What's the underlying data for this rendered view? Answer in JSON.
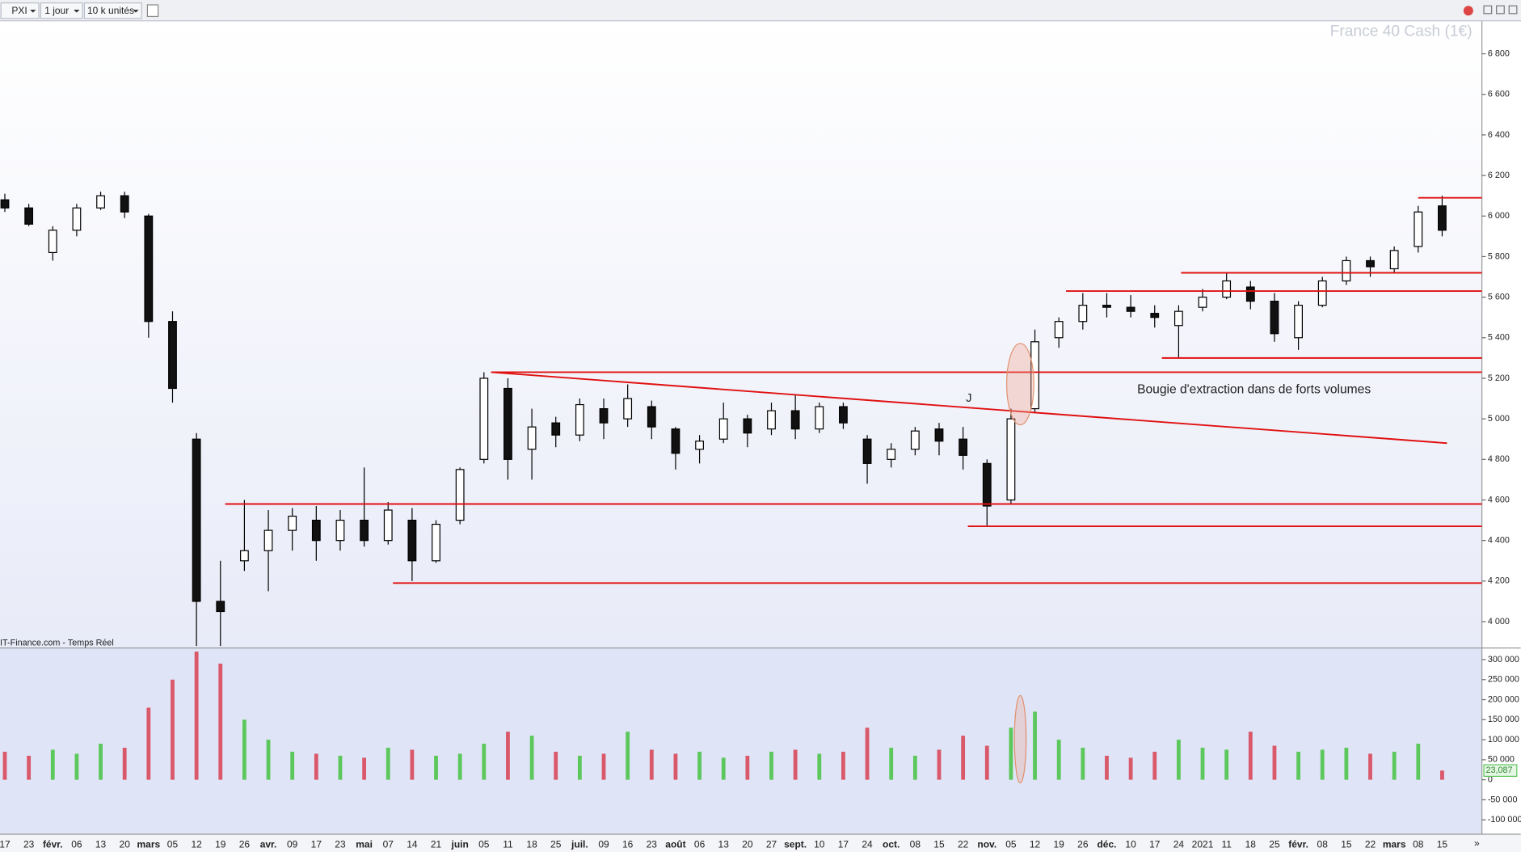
{
  "toolbar": {
    "symbol": "PXI",
    "period": "1 jour",
    "units": "10 k unités"
  },
  "chart_data": {
    "type": "candlestick",
    "title": "France 40 Cash (1€)",
    "source": "IT-Finance.com - Temps Réel",
    "categories": [
      "17",
      "23",
      "févr.",
      "06",
      "13",
      "20",
      "mars",
      "05",
      "12",
      "19",
      "26",
      "avr.",
      "09",
      "17",
      "23",
      "mai",
      "07",
      "14",
      "21",
      "juin",
      "05",
      "11",
      "18",
      "25",
      "juil.",
      "09",
      "16",
      "23",
      "août",
      "06",
      "13",
      "20",
      "27",
      "sept.",
      "10",
      "17",
      "24",
      "oct.",
      "08",
      "15",
      "22",
      "nov.",
      "05",
      "12",
      "19",
      "26",
      "déc.",
      "10",
      "17",
      "24",
      "2021",
      "11",
      "18",
      "25",
      "févr.",
      "08",
      "15",
      "22",
      "mars",
      "08",
      "15"
    ],
    "open": [
      6080,
      6040,
      5820,
      5930,
      6040,
      6100,
      6000,
      5480,
      4900,
      4100,
      4300,
      4350,
      4450,
      4500,
      4400,
      4500,
      4400,
      4500,
      4300,
      4500,
      4800,
      5150,
      4850,
      4980,
      4920,
      5050,
      5000,
      5060,
      4950,
      4850,
      4900,
      5000,
      4950,
      5040,
      4950,
      5060,
      4900,
      4800,
      4850,
      4950,
      4900,
      4780,
      4600,
      5050,
      5400,
      5480,
      5560,
      5550,
      5520,
      5460,
      5550,
      5600,
      5650,
      5580,
      5400,
      5560,
      5680,
      5780,
      5740,
      5850,
      6050
    ],
    "high": [
      6110,
      6060,
      5950,
      6060,
      6120,
      6120,
      6010,
      5530,
      4930,
      4300,
      4600,
      4550,
      4560,
      4570,
      4550,
      4760,
      4590,
      4560,
      4500,
      4760,
      5230,
      5200,
      5050,
      5010,
      5100,
      5100,
      5170,
      5090,
      4960,
      4920,
      5080,
      5020,
      5080,
      5120,
      5080,
      5080,
      4920,
      4880,
      4960,
      4980,
      4960,
      4800,
      5050,
      5440,
      5500,
      5620,
      5620,
      5610,
      5560,
      5560,
      5640,
      5720,
      5680,
      5620,
      5580,
      5700,
      5800,
      5800,
      5850,
      6050,
      6100
    ],
    "low": [
      6020,
      5950,
      5780,
      5900,
      6030,
      5990,
      5400,
      5080,
      3880,
      3880,
      4250,
      4150,
      4350,
      4300,
      4350,
      4370,
      4380,
      4200,
      4290,
      4480,
      4780,
      4700,
      4700,
      4860,
      4890,
      4900,
      4960,
      4900,
      4750,
      4780,
      4880,
      4860,
      4920,
      4900,
      4930,
      4950,
      4680,
      4760,
      4820,
      4820,
      4750,
      4470,
      4580,
      5030,
      5350,
      5440,
      5500,
      5500,
      5450,
      5300,
      5530,
      5590,
      5540,
      5380,
      5340,
      5550,
      5660,
      5700,
      5720,
      5820,
      5900
    ],
    "close": [
      6040,
      5960,
      5930,
      6040,
      6100,
      6020,
      5480,
      5150,
      4100,
      4050,
      4350,
      4450,
      4520,
      4400,
      4500,
      4400,
      4550,
      4300,
      4480,
      4750,
      5200,
      4800,
      4960,
      4920,
      5070,
      4980,
      5100,
      4960,
      4830,
      4890,
      5000,
      4930,
      5040,
      4950,
      5060,
      4980,
      4780,
      4850,
      4940,
      4890,
      4820,
      4570,
      5000,
      5380,
      5480,
      5560,
      5550,
      5530,
      5500,
      5530,
      5600,
      5680,
      5580,
      5420,
      5560,
      5680,
      5780,
      5750,
      5830,
      6020,
      5930
    ],
    "ylim": [
      3870,
      6960
    ],
    "yticks": [
      {
        "value": 4000,
        "label": "4 000"
      },
      {
        "value": 4200,
        "label": "4 200"
      },
      {
        "value": 4400,
        "label": "4 400"
      },
      {
        "value": 4600,
        "label": "4 600"
      },
      {
        "value": 4800,
        "label": "4 800"
      },
      {
        "value": 5000,
        "label": "5 000"
      },
      {
        "value": 5200,
        "label": "5 200"
      },
      {
        "value": 5400,
        "label": "5 400"
      },
      {
        "value": 5600,
        "label": "5 600"
      },
      {
        "value": 5800,
        "label": "5 800"
      },
      {
        "value": 6000,
        "label": "6 000"
      },
      {
        "value": 6200,
        "label": "6 200"
      },
      {
        "value": 6400,
        "label": "6 400"
      },
      {
        "value": 6600,
        "label": "6 600"
      },
      {
        "value": 6800,
        "label": "6 800"
      }
    ],
    "up_color": "#5cc85c",
    "down_color": "#d9596a",
    "line_color": "#e01010",
    "levels": [
      {
        "value": 6090,
        "from": 59.0
      },
      {
        "value": 5720,
        "from": 49.1
      },
      {
        "value": 5630,
        "from": 44.3
      },
      {
        "value": 5300,
        "from": 48.3
      },
      {
        "value": 5230,
        "from": 20.3
      },
      {
        "value": 4580,
        "from": 9.2
      },
      {
        "value": 4470,
        "from": 40.2
      },
      {
        "value": 4190,
        "from": 16.2
      }
    ],
    "trend_line": {
      "start": [
        20.3,
        5230
      ],
      "end": [
        60.2,
        4880
      ]
    },
    "annotations": [
      "Bougie d'extraction dans de forts volumes",
      "J"
    ],
    "volume": {
      "values": [
        70000,
        60000,
        75000,
        65000,
        90000,
        80000,
        180000,
        250000,
        320000,
        290000,
        150000,
        100000,
        70000,
        65000,
        60000,
        55000,
        80000,
        75000,
        60000,
        65000,
        90000,
        120000,
        110000,
        70000,
        60000,
        65000,
        120000,
        75000,
        65000,
        70000,
        55000,
        60000,
        70000,
        75000,
        65000,
        70000,
        130000,
        80000,
        60000,
        75000,
        110000,
        85000,
        130000,
        170000,
        100000,
        80000,
        60000,
        55000,
        70000,
        100000,
        80000,
        75000,
        120000,
        85000,
        70000,
        75000,
        80000,
        65000,
        70000,
        90000,
        23087
      ],
      "last_label": "23,087",
      "ylim": [
        -136000,
        329000
      ],
      "yticks": [
        {
          "value": -100000,
          "label": "-100 000"
        },
        {
          "value": -50000,
          "label": "-50 000"
        },
        0,
        {
          "value": 50000,
          "label": "50 000"
        },
        {
          "value": 100000,
          "label": "100 000"
        },
        {
          "value": 150000,
          "label": "150 000"
        },
        {
          "value": 200000,
          "label": "200 000"
        },
        {
          "value": 250000,
          "label": "250 000"
        },
        {
          "value": 300000,
          "label": "300 000"
        }
      ]
    }
  }
}
